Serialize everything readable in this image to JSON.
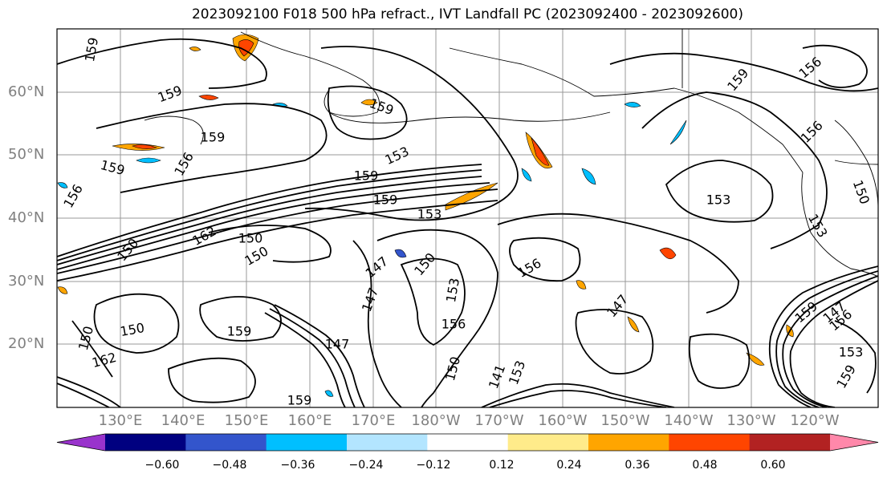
{
  "title": "2023092100 F018 500 hPa refract., IVT Landfall PC (2023092400 - 2023092600)",
  "lat_labels": [
    "60°N",
    "50°N",
    "40°N",
    "30°N",
    "20°N"
  ],
  "lon_labels": [
    "130°E",
    "140°E",
    "150°E",
    "160°E",
    "170°E",
    "180°W",
    "170°W",
    "160°W",
    "150°W",
    "140°W",
    "130°W",
    "120°W"
  ],
  "contour_labels": [
    "159",
    "159",
    "159",
    "156",
    "159",
    "153",
    "159",
    "159",
    "153",
    "150",
    "162",
    "150",
    "147",
    "150",
    "147",
    "150",
    "153",
    "156",
    "156",
    "141",
    "153",
    "150",
    "147",
    "159",
    "147",
    "162",
    "150",
    "159",
    "159",
    "156",
    "153",
    "159",
    "156",
    "150",
    "153",
    "147",
    "156",
    "159",
    "153",
    "156",
    "150",
    "159"
  ],
  "colorbar": {
    "colors": [
      "#9933cc",
      "#000080",
      "#3355cc",
      "#00bfff",
      "#b3e5ff",
      "#ffffff",
      "#ffeb8a",
      "#ffa500",
      "#ff4500",
      "#b22222",
      "#ff88aa"
    ],
    "ticks": [
      "−0.60",
      "−0.48",
      "−0.36",
      "−0.24",
      "−0.12",
      "0.12",
      "0.24",
      "0.36",
      "0.48",
      "0.60"
    ]
  }
}
